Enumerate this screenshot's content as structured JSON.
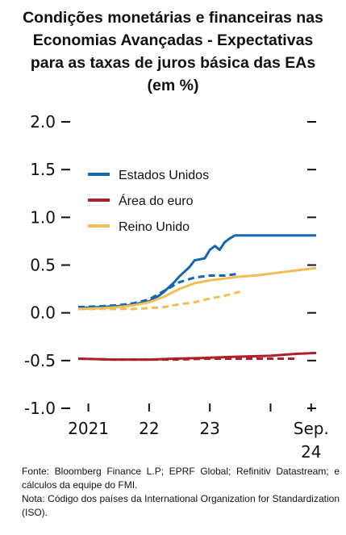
{
  "title_lines": [
    "Condições monetárias e financeiras nas",
    "Economias Avançadas - Expectativas",
    "para as taxas de juros básica das EAs",
    "(em %)"
  ],
  "notes": {
    "source": "Fonte: Bloomberg Finance L.P; EPRF Global; Refinitiv Datastream; e cálculos da equipe do FMI.",
    "note": "Nota: Código dos países da International Organization for Standardization (ISO)."
  },
  "colors": {
    "us": "#1565b0",
    "euro": "#b0202a",
    "uk": "#f2bd55"
  },
  "chart_data": {
    "type": "line",
    "title": "",
    "xlabel": "",
    "ylabel": "",
    "ylim": [
      -1.0,
      2.0
    ],
    "yticks": [
      "2.0",
      "1.5",
      "1.0",
      "0.5",
      "0.0",
      "-0.5",
      "-1.0"
    ],
    "ytick_values": [
      2.0,
      1.5,
      1.0,
      0.5,
      0.0,
      -0.5,
      -1.0
    ],
    "xlim": [
      "2020-11-01",
      "2024-10-01"
    ],
    "xtick_dates": [
      "2021-01-01",
      "2022-01-01",
      "2023-01-01",
      "2024-01-01",
      "2024-09-01"
    ],
    "xtick_labels": [
      "2021",
      "22",
      "23",
      "",
      ""
    ],
    "xtick_last_label": [
      "Sep.",
      "24"
    ],
    "grid": false,
    "legend_position": "upper-left",
    "series": [
      {
        "name": "Estados Unidos",
        "key": "us",
        "style": "solid",
        "x": [
          "2020-11-01",
          "2021-03-01",
          "2021-07-01",
          "2021-09-01",
          "2021-11-01",
          "2022-01-01",
          "2022-02-01",
          "2022-03-01",
          "2022-04-01",
          "2022-05-01",
          "2022-06-01",
          "2022-07-01",
          "2022-08-01",
          "2022-09-01",
          "2022-10-01",
          "2022-11-01",
          "2022-12-01",
          "2023-01-01",
          "2023-02-01",
          "2023-03-01",
          "2023-04-01",
          "2023-05-01",
          "2023-06-01",
          "2023-07-01",
          "2023-08-01",
          "2023-09-01",
          "2023-10-01",
          "2024-10-01"
        ],
        "values": [
          0.05,
          0.06,
          0.07,
          0.08,
          0.1,
          0.12,
          0.15,
          0.18,
          0.22,
          0.27,
          0.32,
          0.38,
          0.43,
          0.48,
          0.55,
          0.56,
          0.57,
          0.66,
          0.7,
          0.66,
          0.74,
          0.78,
          0.81,
          0.81,
          0.81,
          0.81,
          0.81,
          0.81
        ]
      },
      {
        "name": "Estados Unidos",
        "key": "us",
        "style": "dashed",
        "x": [
          "2020-11-01",
          "2021-04-01",
          "2021-07-01",
          "2021-10-01",
          "2022-01-01",
          "2022-04-01",
          "2022-07-01",
          "2022-10-01",
          "2023-01-01",
          "2023-04-01",
          "2023-07-01"
        ],
        "values": [
          0.06,
          0.07,
          0.08,
          0.1,
          0.14,
          0.23,
          0.32,
          0.37,
          0.39,
          0.39,
          0.41
        ]
      },
      {
        "name": "Área do euro",
        "key": "euro",
        "style": "solid",
        "x": [
          "2020-11-01",
          "2021-06-01",
          "2022-01-01",
          "2022-06-01",
          "2023-01-01",
          "2023-06-01",
          "2024-01-01",
          "2024-06-01",
          "2024-10-01"
        ],
        "values": [
          -0.48,
          -0.49,
          -0.49,
          -0.48,
          -0.47,
          -0.46,
          -0.45,
          -0.43,
          -0.42
        ]
      },
      {
        "name": "Área do euro",
        "key": "euro",
        "style": "dashed",
        "x": [
          "2020-11-01",
          "2021-06-01",
          "2022-01-01",
          "2022-06-01",
          "2023-01-01",
          "2023-06-01",
          "2024-01-01",
          "2024-06-01"
        ],
        "values": [
          -0.48,
          -0.49,
          -0.49,
          -0.49,
          -0.48,
          -0.48,
          -0.48,
          -0.48
        ]
      },
      {
        "name": "Reino Unido",
        "key": "uk",
        "style": "solid",
        "x": [
          "2020-11-01",
          "2021-04-01",
          "2021-07-01",
          "2021-10-01",
          "2022-01-01",
          "2022-04-01",
          "2022-07-01",
          "2022-10-01",
          "2023-01-01",
          "2023-04-01",
          "2023-07-01",
          "2023-10-01",
          "2024-01-01",
          "2024-04-01",
          "2024-10-01"
        ],
        "values": [
          0.04,
          0.05,
          0.06,
          0.08,
          0.11,
          0.17,
          0.25,
          0.31,
          0.34,
          0.36,
          0.38,
          0.39,
          0.41,
          0.43,
          0.47
        ]
      },
      {
        "name": "Reino Unido",
        "key": "uk",
        "style": "dashed",
        "x": [
          "2020-11-01",
          "2021-04-01",
          "2021-07-01",
          "2021-10-01",
          "2022-01-01",
          "2022-04-01",
          "2022-07-01",
          "2022-10-01",
          "2023-01-01",
          "2023-04-01",
          "2023-07-01"
        ],
        "values": [
          0.04,
          0.04,
          0.04,
          0.04,
          0.05,
          0.06,
          0.09,
          0.11,
          0.15,
          0.18,
          0.22
        ]
      }
    ],
    "legend": [
      {
        "label": "Estados Unidos",
        "key": "us"
      },
      {
        "label": "Área do euro",
        "key": "euro"
      },
      {
        "label": "Reino Unido",
        "key": "uk"
      }
    ]
  }
}
